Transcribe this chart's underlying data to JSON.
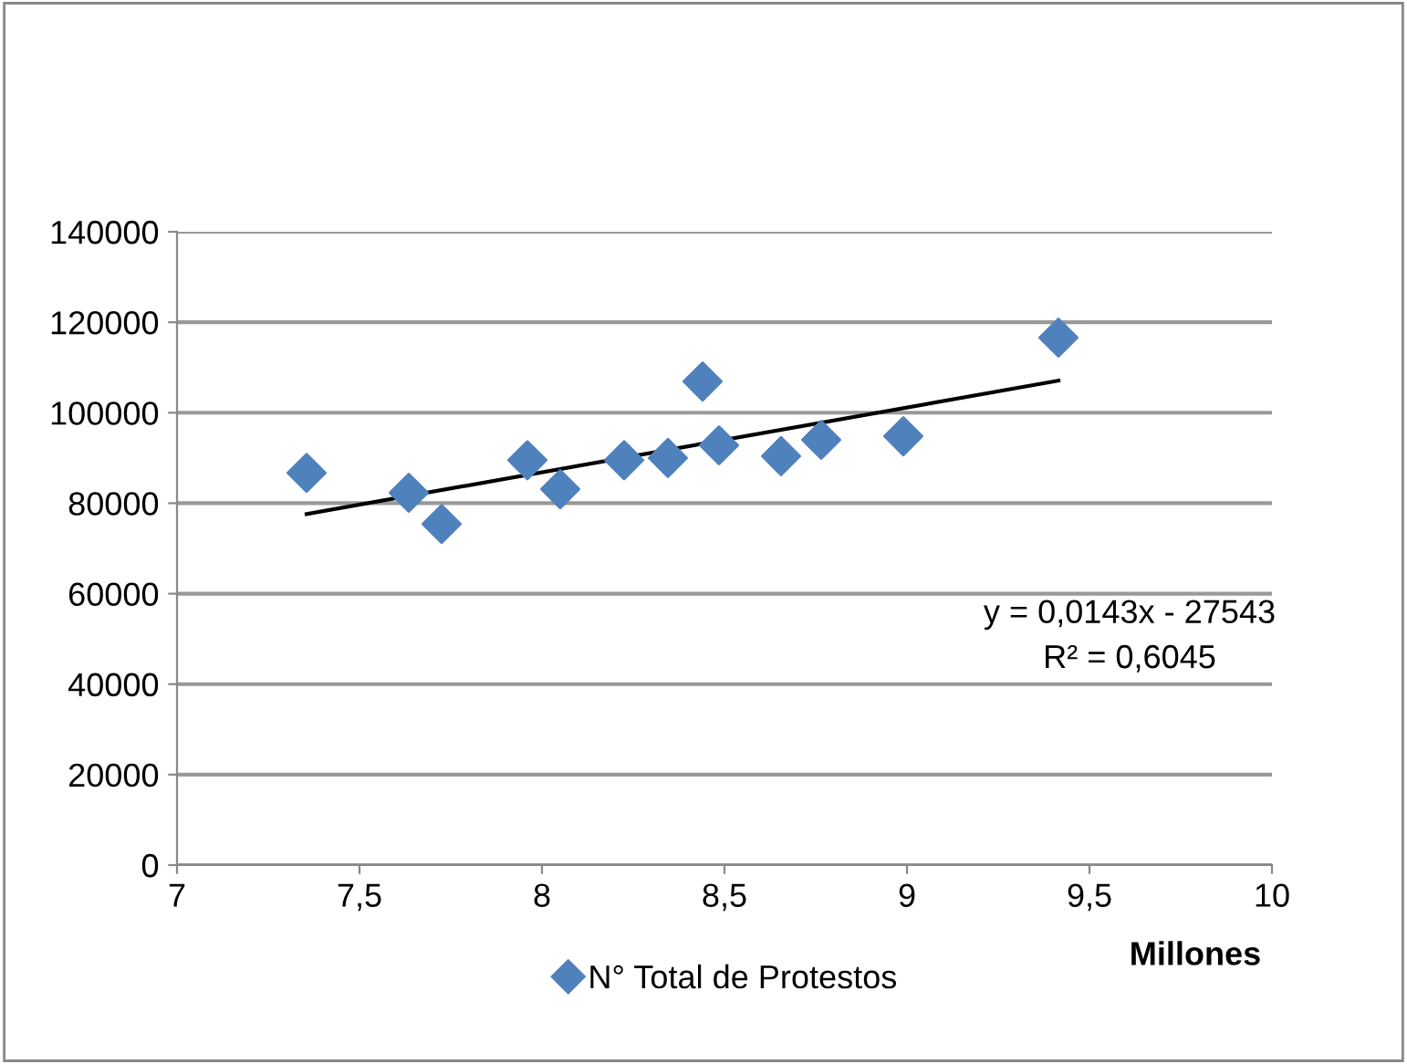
{
  "chart_data": {
    "type": "scatter",
    "xlabel": "Millones",
    "xlim": [
      7,
      10
    ],
    "xticks": [
      7,
      {
        "value": 7.5,
        "label": "7,5"
      },
      8,
      {
        "value": 8.5,
        "label": "8,5"
      },
      9,
      {
        "value": 9.5,
        "label": "9,5"
      },
      10
    ],
    "ylim": [
      0,
      140000
    ],
    "yticks": [
      0,
      20000,
      40000,
      60000,
      80000,
      100000,
      120000,
      140000
    ],
    "grid": "y",
    "legend": "bottom",
    "marker": "diamond",
    "series": [
      {
        "name": "N° Total de Protestos",
        "color": "#4f81bd",
        "x": [
          7.355,
          7.635,
          7.725,
          7.96,
          8.05,
          8.225,
          8.345,
          8.44,
          8.485,
          8.655,
          8.765,
          8.99,
          9.415
        ],
        "values": [
          86700,
          82300,
          75400,
          89500,
          83100,
          89500,
          90000,
          106900,
          92800,
          90400,
          94000,
          94800,
          116600
        ]
      },
      {
        "type": "line",
        "color": "#000000",
        "x": [
          7.355,
          9.415
        ],
        "values": [
          77600,
          107100
        ],
        "marker": "none"
      }
    ],
    "annotations": [
      "y = 0,0143x - 27543\nR² = 0,6045"
    ]
  }
}
